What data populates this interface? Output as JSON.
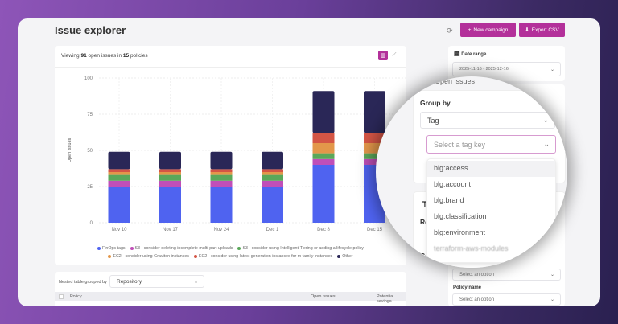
{
  "header": {
    "title": "Issue explorer",
    "refresh_icon": "refresh-icon",
    "new_campaign": "New campaign",
    "export_csv": "Export CSV",
    "accent": "#b3309a"
  },
  "summary": {
    "prefix": "Viewing",
    "issues": "91",
    "middle": "open issues in",
    "policies": "15",
    "suffix": "policies"
  },
  "chart_data": {
    "type": "bar",
    "stacked": true,
    "ylabel": "Open issues",
    "ylim": [
      0,
      100
    ],
    "yticks": [
      0,
      25,
      50,
      75,
      100
    ],
    "grid": true,
    "categories": [
      "Nov 10",
      "Nov 17",
      "Nov 24",
      "Dec 1",
      "Dec 8",
      "Dec 15"
    ],
    "series": [
      {
        "name": "FinOps tags",
        "color": "#4f63f0",
        "values": [
          25,
          25,
          25,
          25,
          40,
          40
        ]
      },
      {
        "name": "S3 - consider deleting incomplete multi-part uploads",
        "color": "#c04fb8",
        "values": [
          4,
          4,
          4,
          4,
          4,
          4
        ]
      },
      {
        "name": "S3 - consider using Intelligent-Tiering or adding a lifecycle policy",
        "color": "#5aa85a",
        "values": [
          4,
          4,
          4,
          4,
          4,
          4
        ]
      },
      {
        "name": "EC2 - consider using Graviton instances",
        "color": "#e3974a",
        "values": [
          2,
          2,
          2,
          2,
          7,
          7
        ]
      },
      {
        "name": "EC2 - consider using latest generation instances for m family instances",
        "color": "#d45545",
        "values": [
          2,
          2,
          2,
          2,
          7,
          7
        ]
      },
      {
        "name": "Other",
        "color": "#2a2757",
        "values": [
          12,
          12,
          12,
          12,
          29,
          29
        ]
      }
    ],
    "legend": "bottom"
  },
  "table": {
    "grouped_label": "Nested table grouped by",
    "grouped_value": "Repository",
    "columns": [
      "Policy",
      "Open issues",
      "Potential savings"
    ]
  },
  "filters": {
    "date_range_label": "Date range",
    "date_range_value": "2025-11-16 - 2025-12-16",
    "section_title": "Open issues",
    "group_by_label": "Group by",
    "group_by_value": "Tag",
    "tag_key_placeholder": "Select a tag key",
    "tag_keys": [
      "blg:access",
      "blg:account",
      "blg:brand",
      "blg:classification",
      "blg:environment",
      "terraform-aws-modules"
    ],
    "filter_icon": "filter-icon",
    "repo_label": "Re",
    "cat_label": "Ca",
    "select_option": "Select an option",
    "policy_name_label": "Policy name",
    "policy_name_value": "Select an option"
  }
}
